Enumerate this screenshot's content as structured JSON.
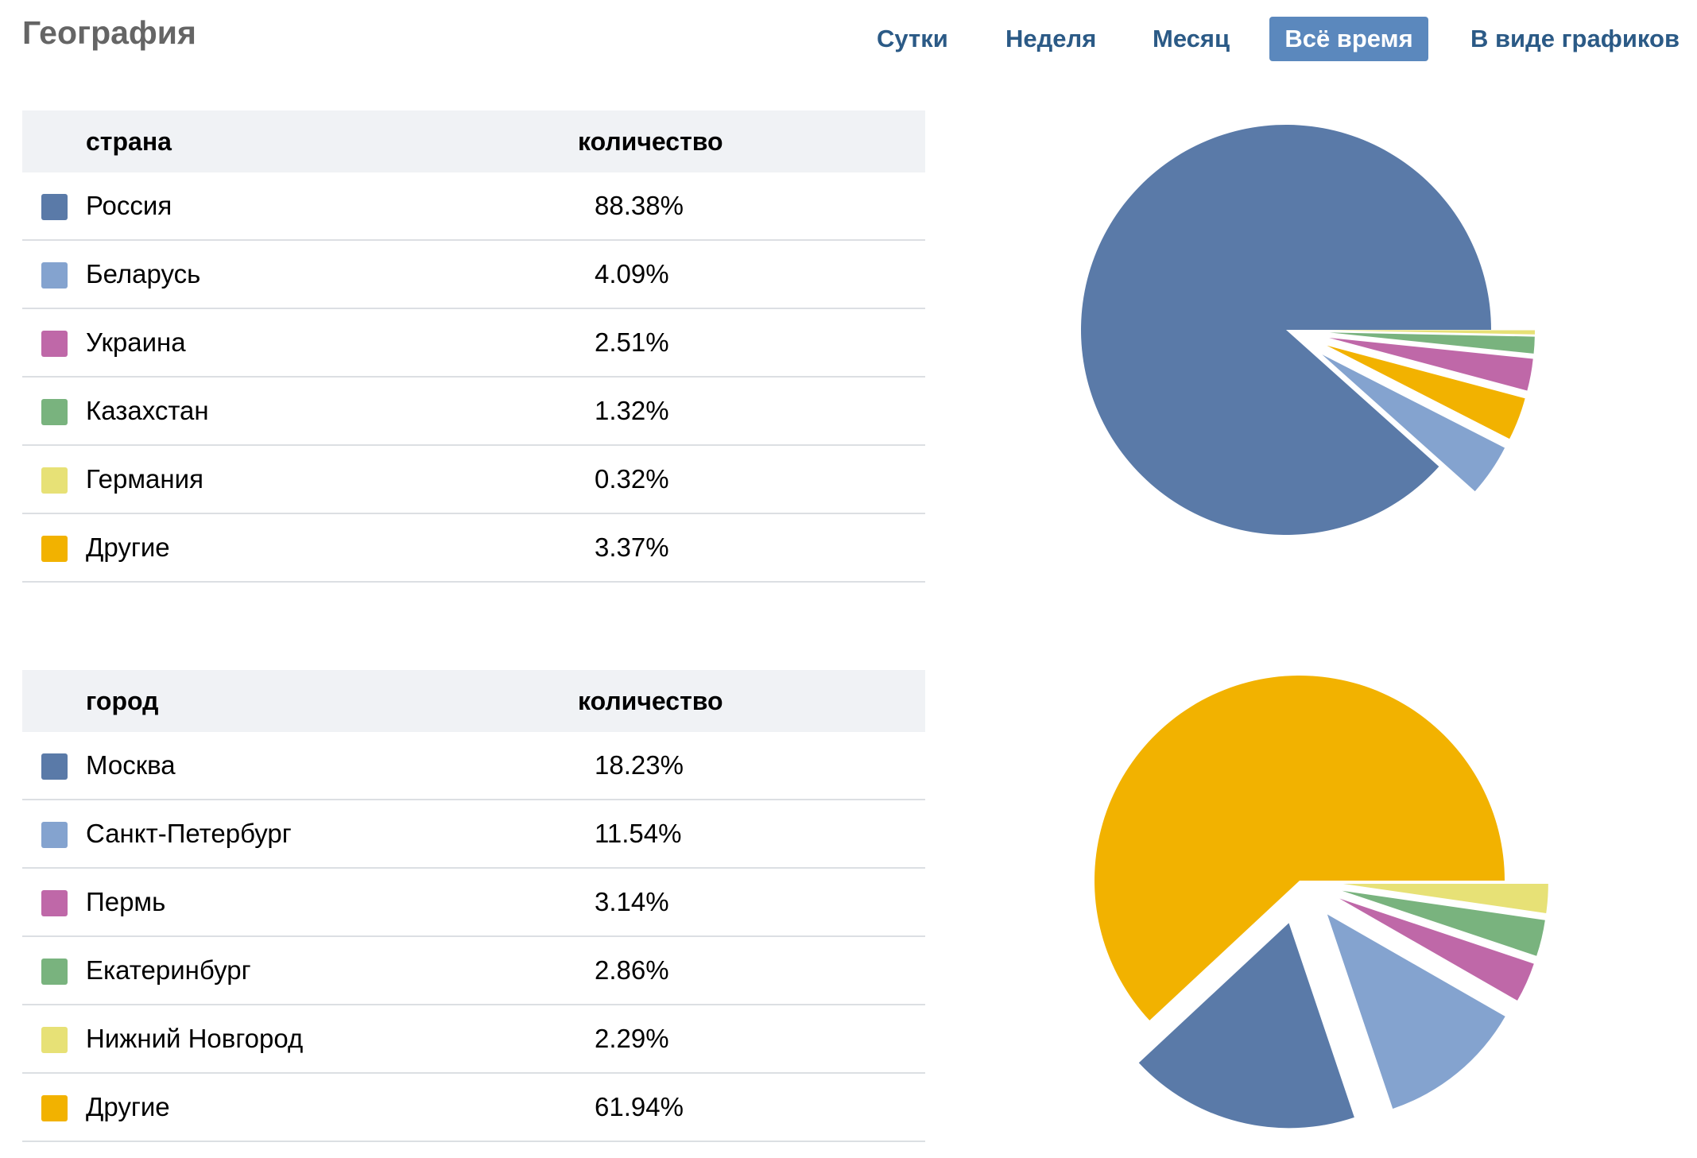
{
  "title": "География",
  "tabs": [
    {
      "label": "Сутки",
      "active": false
    },
    {
      "label": "Неделя",
      "active": false
    },
    {
      "label": "Месяц",
      "active": false
    },
    {
      "label": "Всё время",
      "active": true
    },
    {
      "label": "В виде графиков",
      "active": false
    }
  ],
  "palette": [
    "#5a7aa8",
    "#84a3cf",
    "#bf68a8",
    "#79b37e",
    "#e7e176",
    "#f2b200"
  ],
  "chart_data": [
    {
      "type": "pie",
      "headers": {
        "name": "страна",
        "value": "количество"
      },
      "categories": [
        "Россия",
        "Беларусь",
        "Украина",
        "Казахстан",
        "Германия",
        "Другие"
      ],
      "values": [
        88.38,
        4.09,
        2.51,
        1.32,
        0.32,
        3.37
      ],
      "labels": [
        "88.38%",
        "4.09%",
        "2.51%",
        "1.32%",
        "0.32%",
        "3.37%"
      ],
      "colors": [
        "#5a7aa8",
        "#84a3cf",
        "#bf68a8",
        "#79b37e",
        "#e7e176",
        "#f2b200"
      ],
      "legend": "left"
    },
    {
      "type": "pie",
      "headers": {
        "name": "город",
        "value": "количество"
      },
      "categories": [
        "Москва",
        "Санкт-Петербург",
        "Пермь",
        "Екатеринбург",
        "Нижний Новгород",
        "Другие"
      ],
      "values": [
        18.23,
        11.54,
        3.14,
        2.86,
        2.29,
        61.94
      ],
      "labels": [
        "18.23%",
        "11.54%",
        "3.14%",
        "2.86%",
        "2.29%",
        "61.94%"
      ],
      "colors": [
        "#5a7aa8",
        "#84a3cf",
        "#bf68a8",
        "#79b37e",
        "#e7e176",
        "#f2b200"
      ],
      "legend": "left"
    }
  ]
}
